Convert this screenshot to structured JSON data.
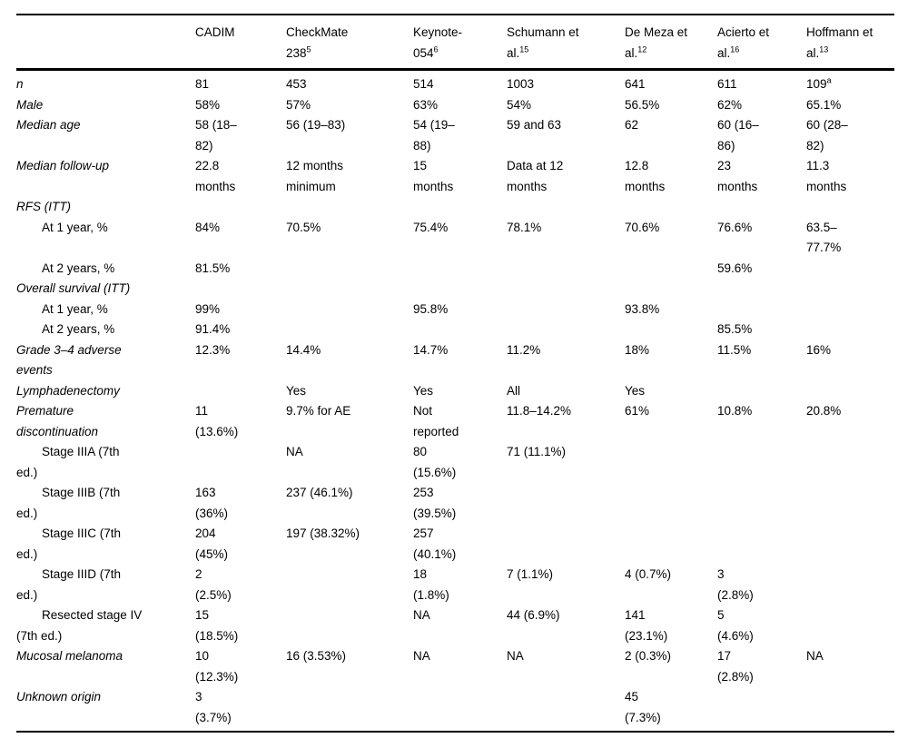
{
  "table": {
    "columns": [
      {
        "label": "",
        "ref": ""
      },
      {
        "label": "CADIM",
        "ref": ""
      },
      {
        "label": "CheckMate\n238",
        "ref": "5"
      },
      {
        "label": "Keynote-\n054",
        "ref": "6"
      },
      {
        "label": "Schumann et\nal.",
        "ref": "15"
      },
      {
        "label": "De Meza et\nal.",
        "ref": "12"
      },
      {
        "label": "Acierto et\nal.",
        "ref": "16"
      },
      {
        "label": "Hoffmann et\nal.",
        "ref": "13"
      }
    ],
    "rows": [
      {
        "label": "n",
        "italic": true,
        "indent": false,
        "cells": [
          {
            "text": "81"
          },
          {
            "text": "453"
          },
          {
            "text": "514"
          },
          {
            "text": "1003"
          },
          {
            "text": "641"
          },
          {
            "text": "611"
          },
          {
            "text": "109",
            "sup": "a"
          }
        ]
      },
      {
        "label": "Male",
        "italic": true,
        "indent": false,
        "cells": [
          {
            "text": "58%"
          },
          {
            "text": "57%"
          },
          {
            "text": "63%"
          },
          {
            "text": "54%"
          },
          {
            "text": "56.5%"
          },
          {
            "text": "62%"
          },
          {
            "text": "65.1%"
          }
        ]
      },
      {
        "label": "Median age",
        "italic": true,
        "indent": false,
        "cells": [
          {
            "text": "58 (18–\n82)"
          },
          {
            "text": "56 (19–83)"
          },
          {
            "text": "54 (19–\n88)"
          },
          {
            "text": "59 and 63"
          },
          {
            "text": "62"
          },
          {
            "text": "60 (16–\n86)"
          },
          {
            "text": "60 (28–\n82)"
          }
        ]
      },
      {
        "label": "Median follow-up",
        "italic": true,
        "indent": false,
        "cells": [
          {
            "text": "22.8\nmonths"
          },
          {
            "text": "12 months\nminimum"
          },
          {
            "text": "15\nmonths"
          },
          {
            "text": "Data at 12\nmonths"
          },
          {
            "text": "12.8\nmonths"
          },
          {
            "text": "23\nmonths"
          },
          {
            "text": "11.3\nmonths"
          }
        ]
      },
      {
        "label": "RFS (ITT)",
        "italic": true,
        "indent": false,
        "cells": [
          {
            "text": ""
          },
          {
            "text": ""
          },
          {
            "text": ""
          },
          {
            "text": ""
          },
          {
            "text": ""
          },
          {
            "text": ""
          },
          {
            "text": ""
          }
        ]
      },
      {
        "label": "At 1 year, %",
        "italic": false,
        "indent": true,
        "cells": [
          {
            "text": "84%"
          },
          {
            "text": "70.5%"
          },
          {
            "text": "75.4%"
          },
          {
            "text": "78.1%"
          },
          {
            "text": "70.6%"
          },
          {
            "text": "76.6%"
          },
          {
            "text": "63.5–\n77.7%"
          }
        ]
      },
      {
        "label": "At 2 years, %",
        "italic": false,
        "indent": true,
        "cells": [
          {
            "text": "81.5%"
          },
          {
            "text": ""
          },
          {
            "text": ""
          },
          {
            "text": ""
          },
          {
            "text": ""
          },
          {
            "text": "59.6%"
          },
          {
            "text": ""
          }
        ]
      },
      {
        "label": "Overall survival (ITT)",
        "italic": true,
        "indent": false,
        "cells": [
          {
            "text": ""
          },
          {
            "text": ""
          },
          {
            "text": ""
          },
          {
            "text": ""
          },
          {
            "text": ""
          },
          {
            "text": ""
          },
          {
            "text": ""
          }
        ]
      },
      {
        "label": "At 1 year, %",
        "italic": false,
        "indent": true,
        "cells": [
          {
            "text": "99%"
          },
          {
            "text": ""
          },
          {
            "text": "95.8%"
          },
          {
            "text": ""
          },
          {
            "text": "93.8%"
          },
          {
            "text": ""
          },
          {
            "text": ""
          }
        ]
      },
      {
        "label": "At 2 years, %",
        "italic": false,
        "indent": true,
        "cells": [
          {
            "text": "91.4%"
          },
          {
            "text": ""
          },
          {
            "text": ""
          },
          {
            "text": ""
          },
          {
            "text": ""
          },
          {
            "text": "85.5%"
          },
          {
            "text": ""
          }
        ]
      },
      {
        "label": "Grade 3–4 adverse\nevents",
        "italic": true,
        "indent": false,
        "cells": [
          {
            "text": "12.3%"
          },
          {
            "text": "14.4%"
          },
          {
            "text": "14.7%"
          },
          {
            "text": "11.2%"
          },
          {
            "text": "18%"
          },
          {
            "text": "11.5%"
          },
          {
            "text": "16%"
          }
        ]
      },
      {
        "label": "Lymphadenectomy",
        "italic": true,
        "indent": false,
        "cells": [
          {
            "text": ""
          },
          {
            "text": "Yes"
          },
          {
            "text": "Yes"
          },
          {
            "text": "All"
          },
          {
            "text": "Yes"
          },
          {
            "text": ""
          },
          {
            "text": ""
          }
        ]
      },
      {
        "label": "Premature\ndiscontinuation",
        "italic": true,
        "indent": false,
        "cells": [
          {
            "text": "11\n(13.6%)"
          },
          {
            "text": "9.7% for AE"
          },
          {
            "text": "Not\nreported"
          },
          {
            "text": "11.8–14.2%"
          },
          {
            "text": "61%"
          },
          {
            "text": "10.8%"
          },
          {
            "text": "20.8%"
          }
        ]
      },
      {
        "label": "Stage IIIA (7th\ned.)",
        "italic": false,
        "indent": true,
        "cells": [
          {
            "text": ""
          },
          {
            "text": "NA"
          },
          {
            "text": "80\n(15.6%)"
          },
          {
            "text": "71 (11.1%)"
          },
          {
            "text": ""
          },
          {
            "text": ""
          },
          {
            "text": ""
          }
        ]
      },
      {
        "label": "Stage IIIB (7th\ned.)",
        "italic": false,
        "indent": true,
        "cells": [
          {
            "text": "163\n(36%)"
          },
          {
            "text": "237 (46.1%)"
          },
          {
            "text": "253\n(39.5%)"
          },
          {
            "text": ""
          },
          {
            "text": ""
          },
          {
            "text": ""
          },
          {
            "text": ""
          }
        ]
      },
      {
        "label": "Stage IIIC (7th\ned.)",
        "italic": false,
        "indent": true,
        "cells": [
          {
            "text": "204\n(45%)"
          },
          {
            "text": "197 (38.32%)"
          },
          {
            "text": "257\n(40.1%)"
          },
          {
            "text": ""
          },
          {
            "text": ""
          },
          {
            "text": ""
          },
          {
            "text": ""
          }
        ]
      },
      {
        "label": "Stage IIID (7th\ned.)",
        "italic": false,
        "indent": true,
        "cells": [
          {
            "text": "2\n(2.5%)"
          },
          {
            "text": ""
          },
          {
            "text": "18\n(1.8%)"
          },
          {
            "text": "7 (1.1%)"
          },
          {
            "text": "4 (0.7%)"
          },
          {
            "text": "3\n(2.8%)"
          },
          {
            "text": ""
          }
        ]
      },
      {
        "label": "Resected stage IV\n(7th ed.)",
        "italic": false,
        "indent": true,
        "cells": [
          {
            "text": "15\n(18.5%)"
          },
          {
            "text": ""
          },
          {
            "text": "NA"
          },
          {
            "text": "44 (6.9%)"
          },
          {
            "text": "141\n(23.1%)"
          },
          {
            "text": "5\n(4.6%)"
          },
          {
            "text": ""
          }
        ]
      },
      {
        "label": "Mucosal melanoma",
        "italic": true,
        "indent": false,
        "cells": [
          {
            "text": "10\n(12.3%)"
          },
          {
            "text": "16 (3.53%)"
          },
          {
            "text": "NA"
          },
          {
            "text": "NA"
          },
          {
            "text": "2 (0.3%)"
          },
          {
            "text": "17\n(2.8%)"
          },
          {
            "text": "NA"
          }
        ]
      },
      {
        "label": "Unknown origin",
        "italic": true,
        "indent": false,
        "cells": [
          {
            "text": "3\n(3.7%)"
          },
          {
            "text": ""
          },
          {
            "text": ""
          },
          {
            "text": ""
          },
          {
            "text": "45\n(7.3%)"
          },
          {
            "text": ""
          },
          {
            "text": ""
          }
        ]
      }
    ]
  }
}
